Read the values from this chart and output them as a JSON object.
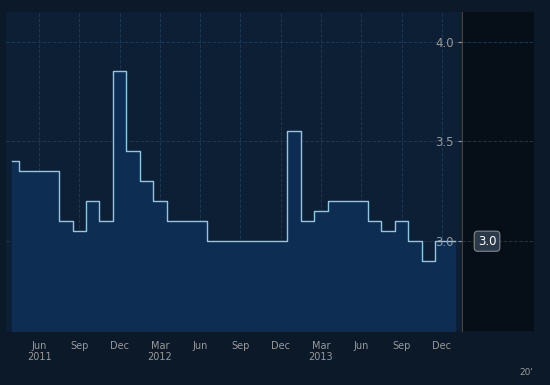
{
  "background_color": "#0b1929",
  "plot_bg_color": "#0d1f35",
  "line_color": "#8ec8e0",
  "fill_color": "#0e2d52",
  "grid_color": "#1e3a55",
  "tick_color": "#999999",
  "ylim": [
    2.55,
    4.15
  ],
  "yticks": [
    3.0,
    3.5,
    4.0
  ],
  "data_values": [
    3.4,
    3.35,
    3.35,
    3.35,
    3.1,
    3.05,
    3.2,
    3.1,
    3.85,
    3.45,
    3.3,
    3.2,
    3.1,
    3.1,
    3.1,
    3.0,
    3.0,
    3.0,
    3.0,
    3.0,
    3.0,
    3.55,
    3.1,
    3.15,
    3.2,
    3.2,
    3.2,
    3.1,
    3.05,
    3.1,
    3.0,
    2.9,
    3.0,
    3.0
  ],
  "xtick_positions": [
    2,
    5,
    8,
    11,
    14,
    17,
    20,
    23,
    26,
    29,
    32
  ],
  "xtick_labels": [
    "Jun\n2011",
    "Sep\n ",
    "Dec\n ",
    "Mar\n2012",
    "Jun\n ",
    "Sep\n ",
    "Dec\n ",
    "Mar\n2013",
    "Jun\n ",
    "Sep\n ",
    "Dec\n "
  ],
  "label_box_value": "3.0",
  "right_margin_color": "#060e18"
}
